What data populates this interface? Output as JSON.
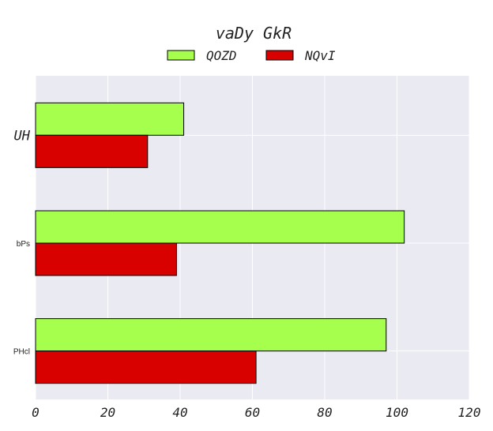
{
  "chart_data": {
    "type": "bar",
    "orientation": "horizontal",
    "title": "vaDy GkR",
    "categories": [
      "UH",
      "bPs",
      "PHcl"
    ],
    "series": [
      {
        "name": "QOZD",
        "values": [
          41,
          102,
          97
        ],
        "color": "#a6ff4d"
      },
      {
        "name": "NQvI",
        "values": [
          31,
          39,
          61
        ],
        "color": "#d90000"
      }
    ],
    "xlim": [
      0,
      120
    ],
    "xticks": [
      0,
      20,
      40,
      60,
      80,
      100,
      120
    ],
    "xlabel": "",
    "ylabel": "",
    "grid": true,
    "legend_position": "top-center",
    "background_color": "#eaeaf2"
  }
}
